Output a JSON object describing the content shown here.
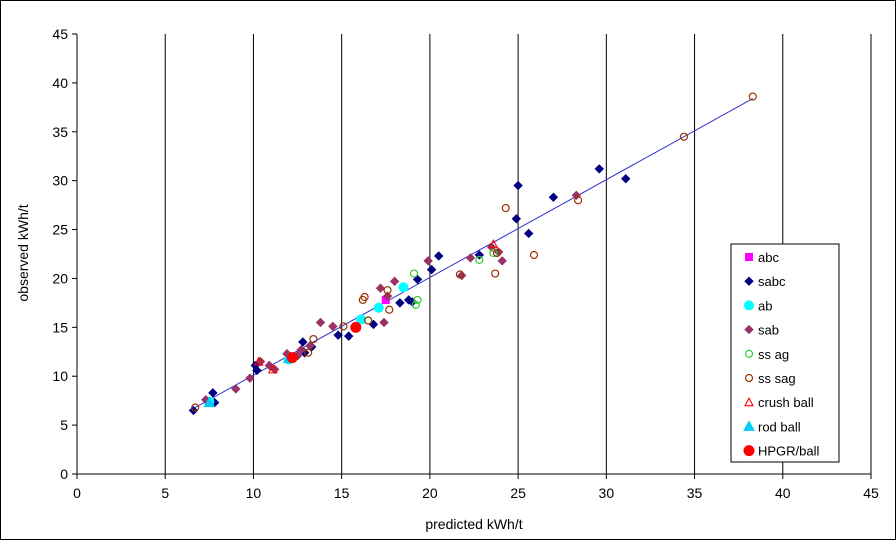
{
  "chart_data": {
    "type": "scatter",
    "title": "",
    "xlabel": "predicted kWh/t",
    "ylabel": "observed kWh/t",
    "xlim": [
      0,
      45
    ],
    "ylim": [
      0,
      45
    ],
    "xticks": [
      "0",
      "5",
      "10",
      "15",
      "20",
      "25",
      "30",
      "35",
      "40",
      "45"
    ],
    "yticks": [
      "0",
      "5",
      "10",
      "15",
      "20",
      "25",
      "30",
      "35",
      "40",
      "45"
    ],
    "grid": "vertical",
    "legend_position": "right",
    "trendline": {
      "x": [
        6.5,
        38.3
      ],
      "y": [
        6.6,
        38.4
      ],
      "color": "#3333cc"
    },
    "series": [
      {
        "name": "abc",
        "marker": "square",
        "fill": "#ff00ff",
        "stroke": "#ff00ff",
        "points": [
          [
            17.5,
            17.8
          ]
        ]
      },
      {
        "name": "sabc",
        "marker": "diamond",
        "fill": "#000080",
        "stroke": "#000080",
        "points": [
          [
            6.6,
            6.5
          ],
          [
            7.7,
            8.3
          ],
          [
            7.8,
            7.3
          ],
          [
            10.1,
            11.1
          ],
          [
            10.2,
            10.6
          ],
          [
            12.8,
            13.5
          ],
          [
            12.9,
            12.4
          ],
          [
            13.3,
            13.0
          ],
          [
            14.8,
            14.2
          ],
          [
            15.4,
            14.1
          ],
          [
            16.8,
            15.3
          ],
          [
            18.3,
            17.5
          ],
          [
            18.8,
            17.8
          ],
          [
            19.0,
            17.6
          ],
          [
            19.3,
            19.9
          ],
          [
            20.1,
            20.9
          ],
          [
            20.5,
            22.3
          ],
          [
            22.8,
            22.4
          ],
          [
            25.0,
            29.5
          ],
          [
            24.9,
            26.1
          ],
          [
            25.6,
            24.6
          ],
          [
            27.0,
            28.3
          ],
          [
            29.6,
            31.2
          ],
          [
            31.1,
            30.2
          ],
          [
            12.3,
            12.0
          ]
        ]
      },
      {
        "name": "ab",
        "marker": "circle",
        "fill": "#00ffff",
        "stroke": "#00ffff",
        "points": [
          [
            18.5,
            19.1
          ],
          [
            17.1,
            17.0
          ],
          [
            16.1,
            15.8
          ],
          [
            7.5,
            7.4
          ],
          [
            12.0,
            11.7
          ]
        ]
      },
      {
        "name": "sab",
        "marker": "diamond",
        "fill": "#993366",
        "stroke": "#993366",
        "points": [
          [
            7.3,
            7.6
          ],
          [
            9.0,
            8.7
          ],
          [
            9.8,
            9.8
          ],
          [
            10.4,
            11.5
          ],
          [
            10.9,
            11.1
          ],
          [
            11.2,
            10.7
          ],
          [
            11.9,
            12.3
          ],
          [
            12.5,
            12.1
          ],
          [
            12.7,
            12.7
          ],
          [
            13.2,
            13.1
          ],
          [
            13.8,
            15.5
          ],
          [
            14.5,
            15.1
          ],
          [
            17.2,
            19.0
          ],
          [
            17.4,
            15.5
          ],
          [
            17.6,
            18.2
          ],
          [
            18.0,
            19.7
          ],
          [
            19.9,
            21.8
          ],
          [
            21.8,
            20.3
          ],
          [
            22.3,
            22.1
          ],
          [
            23.5,
            23.2
          ],
          [
            23.9,
            22.7
          ],
          [
            24.1,
            21.8
          ],
          [
            28.3,
            28.5
          ]
        ]
      },
      {
        "name": "ss ag",
        "marker": "circle-open",
        "fill": "none",
        "stroke": "#33cc33",
        "points": [
          [
            19.1,
            20.5
          ],
          [
            19.2,
            17.3
          ],
          [
            19.3,
            17.8
          ],
          [
            22.8,
            21.9
          ],
          [
            23.6,
            22.6
          ]
        ]
      },
      {
        "name": "ss sag",
        "marker": "circle-open",
        "fill": "none",
        "stroke": "#993300",
        "points": [
          [
            6.7,
            6.8
          ],
          [
            13.4,
            13.8
          ],
          [
            13.1,
            12.4
          ],
          [
            15.1,
            15.1
          ],
          [
            16.2,
            17.8
          ],
          [
            16.3,
            18.1
          ],
          [
            16.5,
            15.7
          ],
          [
            17.6,
            18.8
          ],
          [
            17.7,
            16.8
          ],
          [
            21.7,
            20.4
          ],
          [
            23.7,
            20.5
          ],
          [
            23.8,
            22.6
          ],
          [
            24.3,
            27.2
          ],
          [
            25.9,
            22.4
          ],
          [
            28.4,
            28.0
          ],
          [
            34.4,
            34.5
          ],
          [
            38.3,
            38.6
          ]
        ]
      },
      {
        "name": "crush ball",
        "marker": "triangle-open",
        "fill": "none",
        "stroke": "#ff0000",
        "points": [
          [
            10.3,
            11.5
          ],
          [
            11.1,
            10.7
          ],
          [
            23.6,
            23.5
          ],
          [
            12.1,
            12.0
          ]
        ]
      },
      {
        "name": "rod ball",
        "marker": "triangle",
        "fill": "#00ccff",
        "stroke": "#00ccff",
        "points": [
          [
            7.5,
            7.3
          ],
          [
            12.0,
            11.8
          ]
        ]
      },
      {
        "name": "HPGR/ball",
        "marker": "circle-big",
        "fill": "#ff0000",
        "stroke": "#ff0000",
        "points": [
          [
            12.2,
            11.9
          ],
          [
            15.8,
            15.0
          ]
        ]
      }
    ]
  }
}
